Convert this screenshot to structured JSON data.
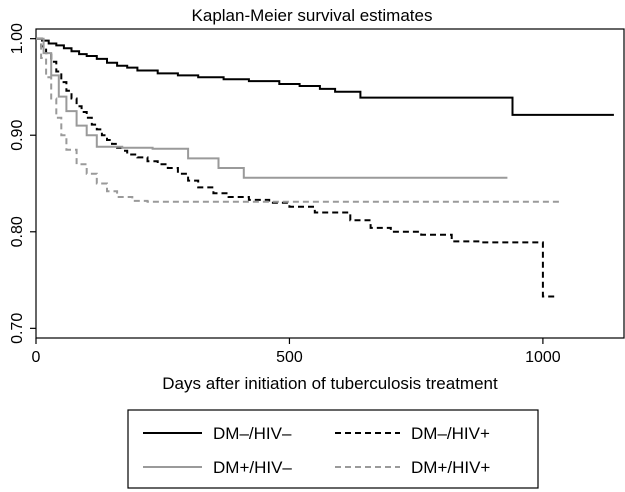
{
  "chart_data": {
    "type": "line",
    "step": true,
    "title": "Kaplan-Meier survival estimates",
    "xlabel": "Days after initiation of tuberculosis treatment",
    "ylabel": "",
    "xlim": [
      0,
      1160
    ],
    "ylim": [
      0.69,
      1.01
    ],
    "xticks": [
      0,
      500,
      1000
    ],
    "xtick_labels": [
      "0",
      "500",
      "1000"
    ],
    "yticks": [
      0.7,
      0.8,
      0.9,
      1.0
    ],
    "ytick_labels": [
      "0.70",
      "0.80",
      "0.90",
      "1.00"
    ],
    "grid": false,
    "legend_position": "bottom",
    "series": [
      {
        "name": "DM–/HIV–",
        "color": "#000000",
        "dash": "solid",
        "x": [
          0,
          12,
          25,
          40,
          55,
          70,
          85,
          100,
          120,
          140,
          160,
          180,
          200,
          240,
          280,
          320,
          370,
          420,
          480,
          520,
          560,
          590,
          640,
          700,
          800,
          940,
          1000,
          1140
        ],
        "y": [
          1.0,
          0.998,
          0.995,
          0.993,
          0.99,
          0.987,
          0.984,
          0.982,
          0.979,
          0.975,
          0.972,
          0.97,
          0.967,
          0.964,
          0.962,
          0.96,
          0.958,
          0.956,
          0.953,
          0.951,
          0.948,
          0.945,
          0.939,
          0.939,
          0.939,
          0.921,
          0.921,
          0.921
        ]
      },
      {
        "name": "DM–/HIV+",
        "color": "#000000",
        "dash": "dashed",
        "x": [
          0,
          10,
          20,
          30,
          40,
          50,
          60,
          70,
          80,
          90,
          100,
          110,
          120,
          130,
          140,
          150,
          160,
          170,
          180,
          200,
          220,
          240,
          260,
          280,
          300,
          320,
          350,
          380,
          420,
          460,
          500,
          550,
          620,
          660,
          700,
          760,
          820,
          880,
          1000,
          1010,
          1030
        ],
        "y": [
          1.0,
          0.992,
          0.985,
          0.976,
          0.966,
          0.955,
          0.946,
          0.938,
          0.93,
          0.924,
          0.918,
          0.911,
          0.906,
          0.9,
          0.895,
          0.891,
          0.887,
          0.884,
          0.88,
          0.877,
          0.873,
          0.87,
          0.866,
          0.86,
          0.853,
          0.846,
          0.84,
          0.836,
          0.833,
          0.83,
          0.826,
          0.82,
          0.812,
          0.804,
          0.8,
          0.797,
          0.79,
          0.789,
          0.733,
          0.733,
          0.733
        ]
      },
      {
        "name": "DM+/HIV−",
        "color": "#9a9a9a",
        "dash": "solid",
        "x": [
          0,
          15,
          30,
          45,
          60,
          80,
          100,
          120,
          170,
          230,
          300,
          360,
          410,
          470,
          530,
          600,
          700,
          800,
          930
        ],
        "y": [
          1.0,
          0.985,
          0.962,
          0.94,
          0.925,
          0.91,
          0.9,
          0.888,
          0.887,
          0.886,
          0.876,
          0.866,
          0.856,
          0.856,
          0.856,
          0.856,
          0.856,
          0.856,
          0.856
        ]
      },
      {
        "name": "DM+/HIV+",
        "color": "#9a9a9a",
        "dash": "dashed",
        "x": [
          0,
          10,
          20,
          30,
          40,
          50,
          60,
          80,
          100,
          120,
          140,
          160,
          190,
          220,
          260,
          300,
          400,
          500,
          600,
          800,
          1000,
          1035
        ],
        "y": [
          1.0,
          0.98,
          0.96,
          0.938,
          0.918,
          0.9,
          0.885,
          0.87,
          0.86,
          0.85,
          0.842,
          0.836,
          0.832,
          0.831,
          0.831,
          0.831,
          0.831,
          0.831,
          0.831,
          0.831,
          0.831,
          0.831
        ]
      }
    ],
    "legend": {
      "rows": [
        [
          "DM–/HIV–",
          "DM–/HIV+"
        ],
        [
          "DM+/HIV–",
          "DM+/HIV+"
        ]
      ]
    }
  }
}
